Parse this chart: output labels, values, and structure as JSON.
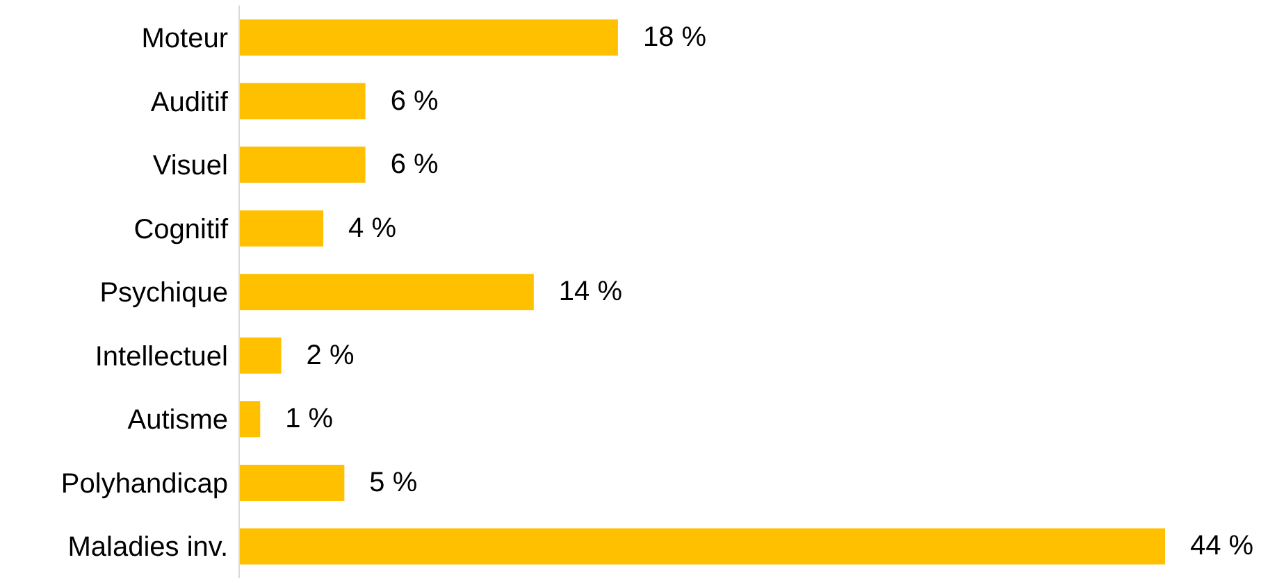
{
  "chart_data": {
    "type": "bar",
    "orientation": "horizontal",
    "categories": [
      "Moteur",
      "Auditif",
      "Visuel",
      "Cognitif",
      "Psychique",
      "Intellectuel",
      "Autisme",
      "Polyhandicap",
      "Maladies inv."
    ],
    "values": [
      18,
      6,
      6,
      4,
      14,
      2,
      1,
      5,
      44
    ],
    "value_labels": [
      "18 %",
      "6 %",
      "6 %",
      "4 %",
      "14 %",
      "2 %",
      "1 %",
      "5 %",
      "44 %"
    ],
    "color": "#ffc000",
    "grid": false,
    "legend": false
  }
}
